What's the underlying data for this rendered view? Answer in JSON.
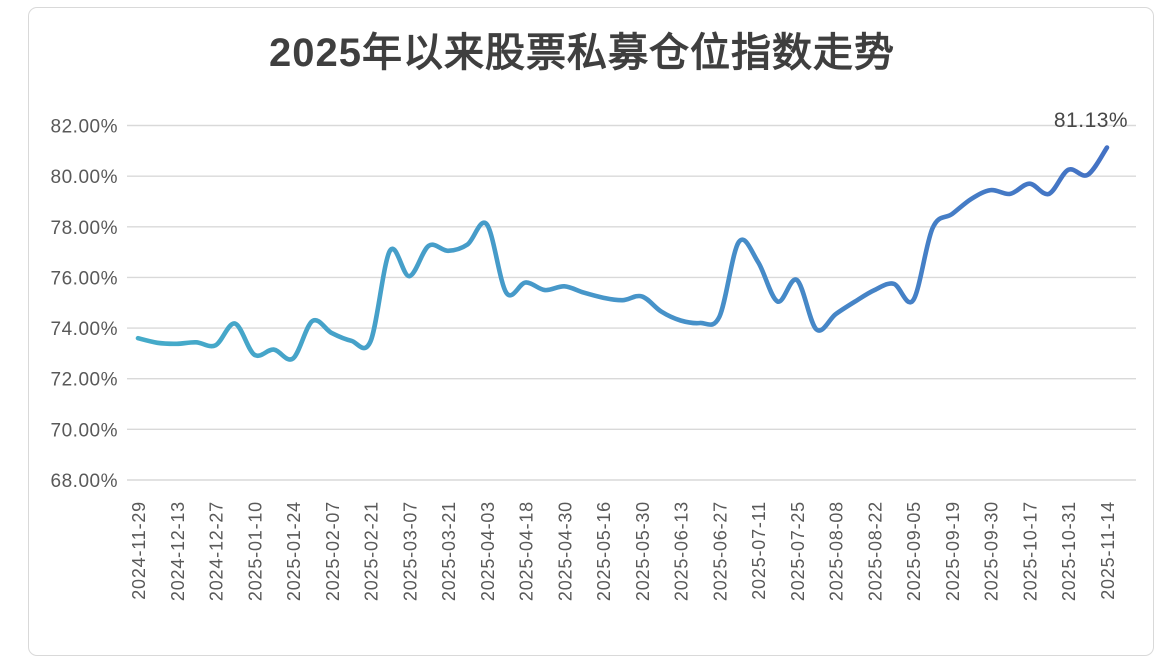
{
  "chart_data": {
    "type": "line",
    "title": "2025年以来股票私募仓位指数走势",
    "ylabel": "",
    "xlabel": "",
    "ylim": [
      68,
      82
    ],
    "grid": "horizontal",
    "legend": "none",
    "y_ticks": [
      {
        "value": 68,
        "label": "68.00%"
      },
      {
        "value": 70,
        "label": "70.00%"
      },
      {
        "value": 72,
        "label": "72.00%"
      },
      {
        "value": 74,
        "label": "74.00%"
      },
      {
        "value": 76,
        "label": "76.00%"
      },
      {
        "value": 78,
        "label": "78.00%"
      },
      {
        "value": 80,
        "label": "80.00%"
      },
      {
        "value": 82,
        "label": "82.00%"
      }
    ],
    "x_tick_labels": [
      "2024-11-29",
      "2024-12-13",
      "2024-12-27",
      "2025-01-10",
      "2025-01-24",
      "2025-02-07",
      "2025-02-21",
      "2025-03-07",
      "2025-03-21",
      "2025-04-03",
      "2025-04-18",
      "2025-04-30",
      "2025-05-16",
      "2025-05-30",
      "2025-06-13",
      "2025-06-27",
      "2025-07-11",
      "2025-07-25",
      "2025-08-08",
      "2025-08-22",
      "2025-09-05",
      "2025-09-19",
      "2025-09-30",
      "2025-10-17",
      "2025-10-31",
      "2025-11-14"
    ],
    "x_ticks_every": 2,
    "values": [
      73.6,
      73.42,
      73.38,
      73.44,
      73.32,
      74.18,
      72.95,
      73.15,
      72.8,
      74.28,
      73.8,
      73.5,
      73.48,
      77.05,
      76.05,
      77.25,
      77.05,
      77.3,
      78.1,
      75.4,
      75.8,
      75.5,
      75.65,
      75.4,
      75.2,
      75.1,
      75.25,
      74.65,
      74.3,
      74.2,
      74.45,
      77.4,
      76.6,
      75.05,
      75.9,
      73.95,
      74.55,
      75.05,
      75.5,
      75.75,
      75.1,
      77.95,
      78.5,
      79.1,
      79.45,
      79.3,
      79.7,
      79.3,
      80.25,
      80.05,
      81.13
    ],
    "last_point_label": "81.13%",
    "colors": {
      "line_gradient_start": "#45abc9",
      "line_gradient_mid": "#4795c9",
      "line_gradient_end": "#4472c4",
      "gridline": "#d9d9d9",
      "axis_text": "#595959",
      "title_text": "#3f3f3f",
      "data_label_text": "#474747",
      "border": "#d9d9d9",
      "background": "#ffffff"
    }
  }
}
